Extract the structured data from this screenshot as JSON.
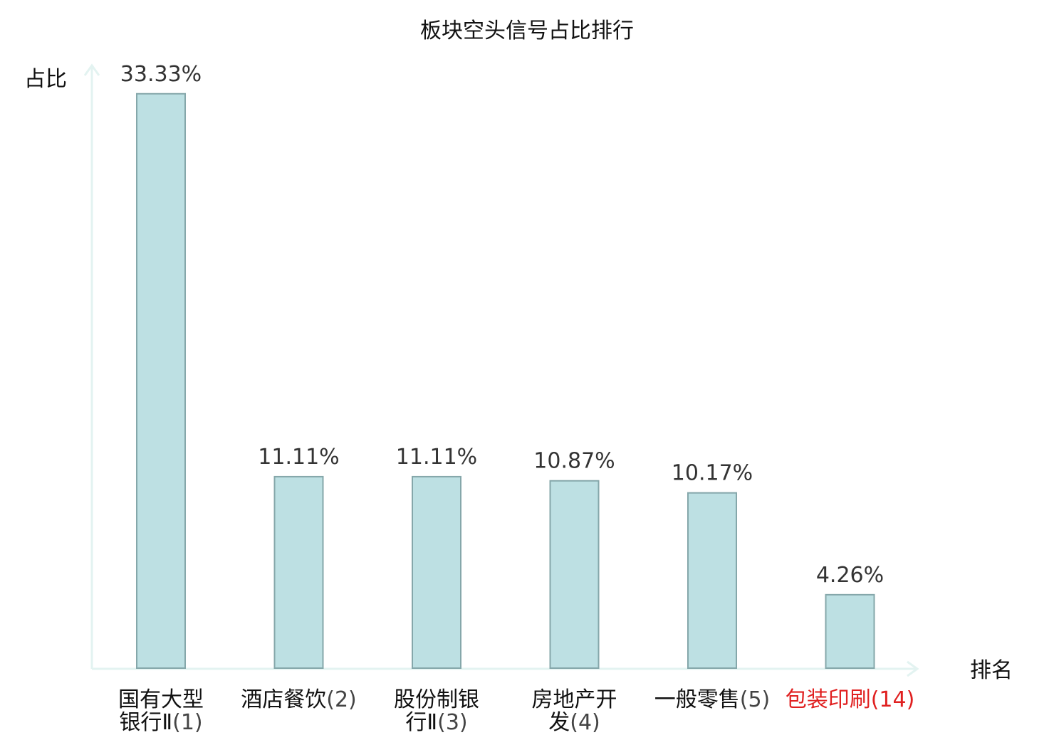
{
  "chart_data": {
    "type": "bar",
    "title": "板块空头信号占比排行",
    "ylabel": "占比",
    "xlabel": "排名",
    "ylim": [
      0,
      34.6
    ],
    "grid": false,
    "legend": "none",
    "categories": [
      {
        "name_lines": [
          "国有大型",
          "银行Ⅱ"
        ],
        "rank": "(1)",
        "highlight": false
      },
      {
        "name_lines": [
          "酒店餐饮"
        ],
        "rank": "(2)",
        "highlight": false
      },
      {
        "name_lines": [
          "股份制银",
          "行Ⅱ"
        ],
        "rank": "(3)",
        "highlight": false
      },
      {
        "name_lines": [
          "房地产开",
          "发"
        ],
        "rank": "(4)",
        "highlight": false
      },
      {
        "name_lines": [
          "一般零售"
        ],
        "rank": "(5)",
        "highlight": false
      },
      {
        "name_lines": [
          "包装印刷"
        ],
        "rank": "(14)",
        "highlight": true
      }
    ],
    "values": [
      33.33,
      11.11,
      11.11,
      10.87,
      10.17,
      4.26
    ],
    "value_labels": [
      "33.33%",
      "11.11%",
      "11.11%",
      "10.87%",
      "10.17%",
      "4.26%"
    ],
    "colors": {
      "bar_fill": "#bde0e3",
      "bar_stroke": "#85a7aa",
      "axis": "#e3f3f1",
      "label_text": "#111111",
      "rank_text": "#444444",
      "highlight_text": "#e02020"
    }
  }
}
